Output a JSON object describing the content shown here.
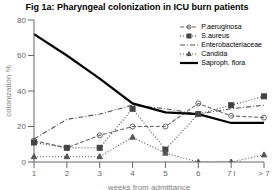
{
  "chart_data": {
    "type": "line",
    "title": "Fig 1a: Pharyngeal colonization in ICU burn patients",
    "xlabel": "weeks from admittance",
    "ylabel": "colonization %",
    "categories": [
      "1",
      "2",
      "3",
      "4",
      "5",
      "6",
      "7 l",
      "> 7"
    ],
    "series": [
      {
        "name": "P.aeruginosa",
        "color": "#666666",
        "values": [
          12,
          8,
          15,
          20,
          20,
          33,
          26,
          25
        ],
        "marker": "circle",
        "line_style": "dashed"
      },
      {
        "name": "S.aureus",
        "color": "#444444",
        "values": [
          11,
          8,
          8,
          30,
          7,
          27,
          32,
          37
        ],
        "marker": "square",
        "line_style": "dotted"
      },
      {
        "name": "Enterobacteriaceae",
        "color": "#555555",
        "values": [
          13,
          24,
          27,
          32,
          30,
          27,
          30,
          32
        ],
        "marker": "none",
        "line_style": "dashdot"
      },
      {
        "name": "Candida",
        "color": "#555555",
        "values": [
          3,
          3,
          3,
          14,
          5,
          0,
          0,
          4
        ],
        "marker": "triangle",
        "line_style": "dotted"
      },
      {
        "name": "Saproph. flora",
        "color": "#000000",
        "values": [
          72,
          60,
          47,
          33,
          28,
          27,
          22,
          22
        ],
        "marker": "none",
        "line_style": "solid"
      }
    ],
    "ylim": [
      0,
      80
    ],
    "yticks": [
      0,
      20,
      40,
      60,
      80
    ],
    "grid": false,
    "legend": "upper right"
  }
}
